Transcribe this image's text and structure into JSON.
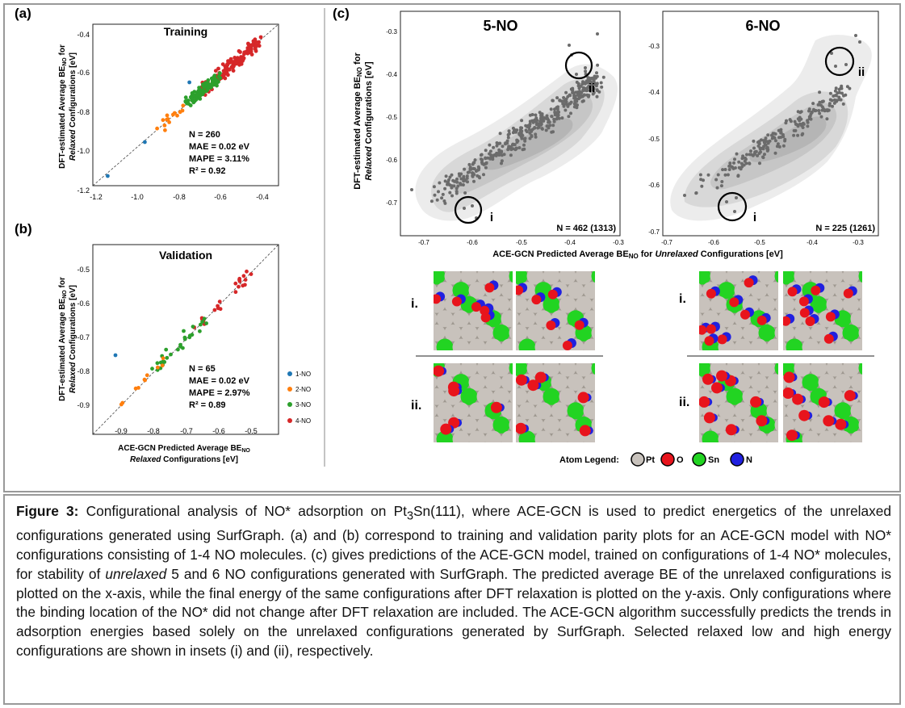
{
  "panels": {
    "a": {
      "label": "(a)",
      "title": "Training",
      "ylabel_line1": "DFT-estimated Average BE",
      "ylabel_sub": "NO",
      "ylabel_tail": " for",
      "ylabel_line2_italic": "Relaxed",
      "ylabel_line2_rest": " Configurations [eV]",
      "stats": [
        "N = 260",
        "MAE = 0.02 eV",
        "MAPE = 3.11%",
        "R² = 0.92"
      ],
      "xticks": [
        "-1.2",
        "-1.0",
        "-0.8",
        "-0.6",
        "-0.4"
      ],
      "yticks": [
        "-0.4",
        "-0.6",
        "-0.8",
        "-1.0",
        "-1.2"
      ]
    },
    "b": {
      "label": "(b)",
      "title": "Validation",
      "ylabel_line1": "DFT-estimated Average BE",
      "ylabel_sub": "NO",
      "ylabel_tail": " for",
      "ylabel_line2_italic": "Relaxed",
      "ylabel_line2_rest": " Configurations [eV]",
      "xlabel_line1": "ACE-GCN Predicted Average BE",
      "xlabel_sub": "NO",
      "xlabel_line2_italic": "Relaxed",
      "xlabel_line2_rest": " Configurations [eV]",
      "stats": [
        "N = 65",
        "MAE = 0.02 eV",
        "MAPE = 2.97%",
        "R² = 0.89"
      ],
      "xticks": [
        "-0.9",
        "-0.8",
        "-0.7",
        "-0.6",
        "-0.5"
      ],
      "yticks": [
        "-0.5",
        "-0.6",
        "-0.7",
        "-0.8",
        "-0.9"
      ],
      "legend": [
        {
          "label": "1-NO",
          "color": "#1f77b4"
        },
        {
          "label": "2-NO",
          "color": "#ff7f0e"
        },
        {
          "label": "3-NO",
          "color": "#2ca02c"
        },
        {
          "label": "4-NO",
          "color": "#d62728"
        }
      ]
    },
    "c": {
      "label": "(c)",
      "ylabel_line1": "DFT-estimated Average BE",
      "ylabel_sub": "NO",
      "ylabel_tail": " for",
      "ylabel_line2_italic": "Relaxed",
      "ylabel_line2_rest": " Configurations [eV]",
      "xlabel_pre": "ACE-GCN Predicted Average BE",
      "xlabel_sub": "NO",
      "xlabel_mid": " for ",
      "xlabel_italic": "Unrelaxed",
      "xlabel_post": " Configurations [eV]",
      "left": {
        "title": "5-NO",
        "count": "N = 462 (1313)",
        "xticks": [
          "-0.7",
          "-0.6",
          "-0.5",
          "-0.4",
          "-0.3"
        ],
        "yticks": [
          "-0.3",
          "-0.4",
          "-0.5",
          "-0.6",
          "-0.7"
        ],
        "marker_i": "i",
        "marker_ii": "ii"
      },
      "right": {
        "title": "6-NO",
        "count": "N = 225 (1261)",
        "xticks": [
          "-0.7",
          "-0.6",
          "-0.5",
          "-0.4",
          "-0.3"
        ],
        "yticks": [
          "-0.3",
          "-0.4",
          "-0.5",
          "-0.6",
          "-0.7"
        ],
        "marker_i": "i",
        "marker_ii": "ii"
      },
      "inset_labels": [
        "i.",
        "ii.",
        "i.",
        "ii."
      ],
      "atom_legend_title": "Atom Legend:",
      "atoms": [
        {
          "label": "Pt",
          "color": "#c8c2bc"
        },
        {
          "label": "O",
          "color": "#e8141c"
        },
        {
          "label": "Sn",
          "color": "#22d422"
        },
        {
          "label": "N",
          "color": "#2020e0"
        }
      ]
    }
  },
  "caption": {
    "lead": "Figure 3:",
    "text_1": " Configurational analysis of NO* adsorption on Pt",
    "sub_3": "3",
    "text_2": "Sn(111), where ACE-GCN is used to predict energetics of the unrelaxed configurations generated using SurfGraph. (a) and (b) correspond to training and validation parity plots for an ACE-GCN model with NO* configurations consisting of 1-4 NO molecules. (c) gives predictions of the ACE-GCN model, trained on configurations of 1-4 NO* molecules, for stability of ",
    "italic_word": "unrelaxed",
    "text_3": " 5 and 6 NO configurations generated with SurfGraph. The predicted average BE of the unrelaxed configurations is plotted on the x-axis, while the final energy of the same configurations after DFT relaxation is plotted on the y-axis. Only configurations where the binding location of the NO* did not change after DFT relaxation are included. The ACE-GCN algorithm successfully predicts the trends in adsorption energies based solely on the unrelaxed configurations generated by SurfGraph.  Selected relaxed low and high energy configurations are shown in insets (i) and (ii), respectively."
  }
}
